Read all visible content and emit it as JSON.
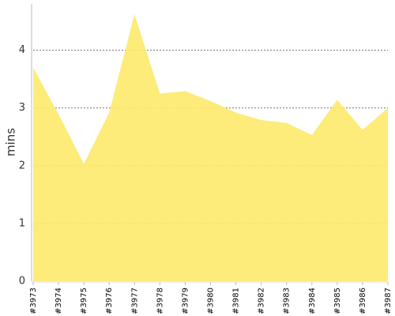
{
  "chart_data": {
    "type": "area",
    "y_label": "mins",
    "categories": [
      "#3973",
      "#3974",
      "#3975",
      "#3976",
      "#3977",
      "#3978",
      "#3979",
      "#3980",
      "#3981",
      "#3982",
      "#3983",
      "#3984",
      "#3985",
      "#3986",
      "#3987"
    ],
    "values": [
      3.7,
      2.89,
      2.03,
      2.92,
      4.62,
      3.25,
      3.29,
      3.12,
      2.92,
      2.79,
      2.74,
      2.53,
      3.14,
      2.62,
      3.0
    ],
    "color": "#fde96f",
    "ylim": [
      0,
      4.8
    ],
    "yticks": [
      0,
      1,
      2,
      3,
      4
    ],
    "grid": true
  }
}
